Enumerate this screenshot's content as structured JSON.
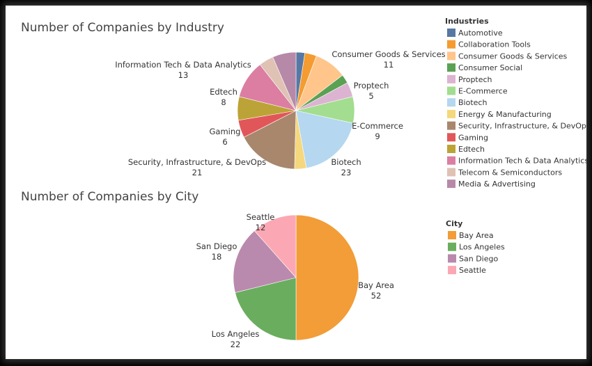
{
  "chart_data": [
    {
      "type": "pie",
      "title": "Number of Companies by Industry",
      "legend_title": "Industries",
      "legend_position": "right",
      "slices": [
        {
          "name": "Automotive",
          "value": 3,
          "color": "#5778a4"
        },
        {
          "name": "Collaboration Tools",
          "value": 4,
          "color": "#f49c31"
        },
        {
          "name": "Consumer Goods & Services",
          "value": 11,
          "color": "#ffc58a"
        },
        {
          "name": "Consumer Social",
          "value": 3,
          "color": "#5ba154"
        },
        {
          "name": "Proptech",
          "value": 5,
          "color": "#dcb4d2"
        },
        {
          "name": "E-Commerce",
          "value": 9,
          "color": "#a3dd90"
        },
        {
          "name": "Biotech",
          "value": 23,
          "color": "#b5d7ef"
        },
        {
          "name": "Energy & Manufacturing",
          "value": 4,
          "color": "#f5d77d"
        },
        {
          "name": "Security, Infrastructure, & DevOps",
          "value": 21,
          "color": "#a8876d"
        },
        {
          "name": "Gaming",
          "value": 6,
          "color": "#e15759"
        },
        {
          "name": "Edtech",
          "value": 8,
          "color": "#bca337"
        },
        {
          "name": "Information Tech & Data Analytics",
          "value": 13,
          "color": "#db7ea2"
        },
        {
          "name": "Telecom & Semiconductors",
          "value": 5,
          "color": "#dfc2b4"
        },
        {
          "name": "Media & Advertising",
          "value": 8,
          "color": "#b789a9"
        }
      ],
      "labeled_slices": [
        {
          "name": "Consumer Goods & Services",
          "value": "11"
        },
        {
          "name": "Proptech",
          "value": "5"
        },
        {
          "name": "E-Commerce",
          "value": "9"
        },
        {
          "name": "Biotech",
          "value": "23"
        },
        {
          "name": "Security, Infrastructure, & DevOps",
          "value": "21"
        },
        {
          "name": "Gaming",
          "value": "6"
        },
        {
          "name": "Edtech",
          "value": "8"
        },
        {
          "name": "Information Tech & Data Analytics",
          "value": "13"
        }
      ]
    },
    {
      "type": "pie",
      "title": "Number of Companies by City",
      "legend_title": "City",
      "legend_position": "right",
      "slices": [
        {
          "name": "Bay Area",
          "value": 52,
          "color": "#f29d37"
        },
        {
          "name": "Los Angeles",
          "value": 22,
          "color": "#6aad5e"
        },
        {
          "name": "San Diego",
          "value": 18,
          "color": "#b98aad"
        },
        {
          "name": "Seattle",
          "value": 12,
          "color": "#fca8b4"
        }
      ],
      "labeled_slices": [
        {
          "name": "Bay Area",
          "value": "52"
        },
        {
          "name": "Los Angeles",
          "value": "22"
        },
        {
          "name": "San Diego",
          "value": "18"
        },
        {
          "name": "Seattle",
          "value": "12"
        }
      ]
    }
  ]
}
